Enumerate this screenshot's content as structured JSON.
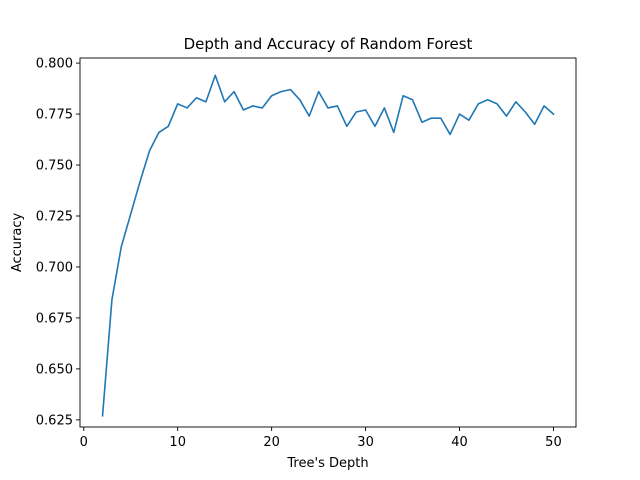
{
  "chart_data": {
    "type": "line",
    "title": "Depth and Accuracy of Random Forest",
    "xlabel": "Tree's Depth",
    "ylabel": "Accuracy",
    "xlim": [
      -0.4,
      52.4
    ],
    "ylim": [
      0.6215,
      0.8025
    ],
    "xticks": [
      0,
      10,
      20,
      30,
      40,
      50
    ],
    "yticks": [
      0.625,
      0.65,
      0.675,
      0.7,
      0.725,
      0.75,
      0.775,
      0.8
    ],
    "ytick_labels": [
      "0.625",
      "0.650",
      "0.675",
      "0.700",
      "0.725",
      "0.750",
      "0.775",
      "0.800"
    ],
    "grid": false,
    "line_color": "#1f77b4",
    "series": [
      {
        "x": [
          2,
          3,
          4,
          5,
          6,
          7,
          8,
          9,
          10,
          11,
          12,
          13,
          14,
          15,
          16,
          17,
          18,
          19,
          20,
          21,
          22,
          23,
          24,
          25,
          26,
          27,
          28,
          29,
          30,
          31,
          32,
          33,
          34,
          35,
          36,
          37,
          38,
          39,
          40,
          41,
          42,
          43,
          44,
          45,
          46,
          47,
          48,
          49,
          50
        ],
        "values": [
          0.627,
          0.684,
          0.71,
          0.726,
          0.742,
          0.757,
          0.766,
          0.769,
          0.78,
          0.778,
          0.783,
          0.781,
          0.794,
          0.781,
          0.786,
          0.777,
          0.779,
          0.778,
          0.784,
          0.786,
          0.787,
          0.782,
          0.774,
          0.786,
          0.778,
          0.779,
          0.769,
          0.776,
          0.777,
          0.769,
          0.778,
          0.766,
          0.784,
          0.782,
          0.771,
          0.773,
          0.773,
          0.765,
          0.775,
          0.772,
          0.78,
          0.782,
          0.78,
          0.774,
          0.781,
          0.776,
          0.77,
          0.779,
          0.775
        ]
      }
    ]
  }
}
